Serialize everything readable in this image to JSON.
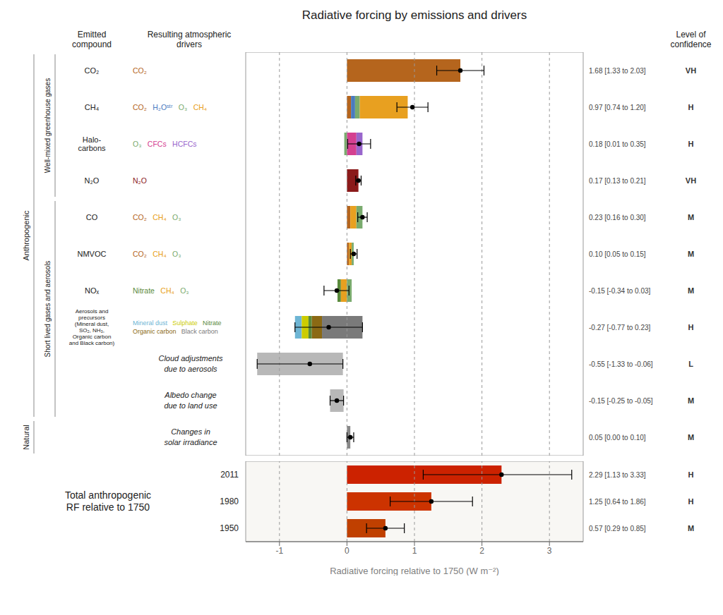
{
  "chart_data": [
    {
      "type": "bar",
      "orientation": "horizontal",
      "title": "Radiative forcing by emissions and drivers",
      "column_headers": [
        "Emitted\ncompound",
        "Resulting atmospheric\ndrivers",
        "Level of\nconfidence"
      ],
      "categories": [
        "CO₂",
        "CH₄",
        "Halo-\ncarbons",
        "N₂O",
        "CO",
        "NMVOC",
        "NOₓ",
        "Aerosols and\nprecursors\n(Mineral dust,\nSO₂, NH₃,\nOrganic carbon\nand Black carbon)",
        null,
        null,
        null
      ],
      "drivers": [
        [
          [
            {
              "text": "CO₂",
              "color": "#b5651d"
            }
          ]
        ],
        [
          [
            {
              "text": "CO₂",
              "color": "#b5651d"
            },
            {
              "text": "H₂Oˢᵗʳ",
              "color": "#4a7bbf"
            },
            {
              "text": "O₃",
              "color": "#7aab6e"
            },
            {
              "text": "CH₄",
              "color": "#e8a020"
            }
          ]
        ],
        [
          [
            {
              "text": "O₃",
              "color": "#7aab6e"
            },
            {
              "text": "CFCs",
              "color": "#d44090"
            },
            {
              "text": "HCFCs",
              "color": "#9966cc"
            }
          ]
        ],
        [
          [
            {
              "text": "N₂O",
              "color": "#8b1a1a"
            }
          ]
        ],
        [
          [
            {
              "text": "CO₂",
              "color": "#b5651d"
            },
            {
              "text": "CH₄",
              "color": "#e8a020"
            },
            {
              "text": "O₃",
              "color": "#7aab6e"
            }
          ]
        ],
        [
          [
            {
              "text": "CO₂",
              "color": "#b5651d"
            },
            {
              "text": "CH₄",
              "color": "#e8a020"
            },
            {
              "text": "O₃",
              "color": "#7aab6e"
            }
          ]
        ],
        [
          [
            {
              "text": "Nitrate",
              "color": "#5a8a3c"
            },
            {
              "text": "CH₄",
              "color": "#e8a020"
            },
            {
              "text": "O₃",
              "color": "#7aab6e"
            }
          ]
        ],
        [
          [
            {
              "text": "Mineral dust",
              "color": "#6eb5d4"
            },
            {
              "text": "Sulphate",
              "color": "#cccc00"
            },
            {
              "text": "Nitrate",
              "color": "#5a8a3c"
            }
          ],
          [
            {
              "text": "Organic carbon",
              "color": "#8b6914"
            },
            {
              "text": "Black carbon",
              "color": "#7a7a7a"
            }
          ]
        ],
        [
          [
            {
              "text": "Cloud adjustments"
            }
          ],
          [
            {
              "text": "due to aerosols"
            }
          ]
        ],
        [
          [
            {
              "text": "Albedo change"
            }
          ],
          [
            {
              "text": "due to land use"
            }
          ]
        ],
        [
          [
            {
              "text": "Changes in"
            }
          ],
          [
            {
              "text": "solar irradiance"
            }
          ]
        ]
      ],
      "segments": [
        [
          {
            "start": 0,
            "width": 1.68,
            "color": "#b5651d"
          }
        ],
        [
          {
            "start": 0.0,
            "width": 0.06,
            "color": "#b5651d"
          },
          {
            "start": 0.06,
            "width": 0.06,
            "color": "#4a7bbf"
          },
          {
            "start": 0.12,
            "width": 0.07,
            "color": "#7aab6e"
          },
          {
            "start": 0.19,
            "width": 0.71,
            "color": "#e8a020"
          }
        ],
        [
          {
            "start": -0.04,
            "width": 0.04,
            "color": "#7aab6e"
          },
          {
            "start": 0.0,
            "width": 0.14,
            "color": "#d44090"
          },
          {
            "start": 0.14,
            "width": 0.09,
            "color": "#9966cc"
          }
        ],
        [
          {
            "start": 0,
            "width": 0.17,
            "color": "#8b1a1a"
          }
        ],
        [
          {
            "start": 0.0,
            "width": 0.05,
            "color": "#b5651d"
          },
          {
            "start": 0.05,
            "width": 0.09,
            "color": "#e8a020"
          },
          {
            "start": 0.14,
            "width": 0.09,
            "color": "#7aab6e"
          }
        ],
        [
          {
            "start": 0.0,
            "width": 0.03,
            "color": "#b5651d"
          },
          {
            "start": 0.03,
            "width": 0.04,
            "color": "#e8a020"
          },
          {
            "start": 0.07,
            "width": 0.03,
            "color": "#7aab6e"
          }
        ],
        [
          {
            "start": -0.14,
            "width": 0.05,
            "color": "#5a8a3c"
          },
          {
            "start": -0.09,
            "width": 0.09,
            "color": "#e8a020"
          },
          {
            "start": 0.0,
            "width": 0.07,
            "color": "#7aab6e"
          }
        ],
        [
          {
            "start": -0.77,
            "width": 0.1,
            "color": "#6eb5d4"
          },
          {
            "start": -0.67,
            "width": 0.1,
            "color": "#cccc00"
          },
          {
            "start": -0.57,
            "width": 0.05,
            "color": "#5a8a3c"
          },
          {
            "start": -0.52,
            "width": 0.15,
            "color": "#8b6914"
          },
          {
            "start": -0.37,
            "width": 0.6,
            "color": "#7a7a7a"
          }
        ],
        [
          {
            "start": -1.33,
            "width": 1.27,
            "color": "#b8b8b8"
          }
        ],
        [
          {
            "start": -0.25,
            "width": 0.2,
            "color": "#b8b8b8"
          }
        ],
        [
          {
            "start": 0,
            "width": 0.05,
            "color": "#888888"
          }
        ]
      ],
      "values": [
        1.68,
        0.97,
        0.18,
        0.17,
        0.23,
        0.1,
        -0.15,
        -0.27,
        -0.55,
        -0.15,
        0.05
      ],
      "err_low": [
        0.35,
        0.23,
        0.17,
        0.04,
        0.07,
        0.05,
        0.19,
        0.5,
        0.78,
        0.1,
        0.05
      ],
      "err_high": [
        0.35,
        0.23,
        0.17,
        0.04,
        0.07,
        0.05,
        0.18,
        0.5,
        0.49,
        0.1,
        0.05
      ],
      "value_labels": [
        "1.68 [1.33 to 2.03]",
        "0.97 [0.74 to 1.20]",
        "0.18 [0.01 to 0.35]",
        "0.17 [0.13 to 0.21]",
        "0.23 [0.16 to 0.30]",
        "0.10 [0.05 to 0.15]",
        "-0.15 [-0.34 to 0.03]",
        "-0.27 [-0.77 to 0.23]",
        "-0.55 [-1.33 to -0.06]",
        "-0.15 [-0.25 to -0.05]",
        "0.05 [0.00 to 0.10]"
      ],
      "confidence": [
        "VH",
        "H",
        "H",
        "VH",
        "M",
        "M",
        "M",
        "H",
        "L",
        "M",
        "M"
      ],
      "sections": [
        {
          "label": "Anthropogenic",
          "first": 0,
          "last": 9
        },
        {
          "label": "Well-mixed greenhouse gases",
          "first": 0,
          "last": 3
        },
        {
          "label": "Short lived gases and aerosols",
          "first": 4,
          "last": 9
        },
        {
          "label": "Natural",
          "first": 10,
          "last": 10
        }
      ],
      "xlim": [
        -1.5,
        3.5
      ],
      "xticks": [
        -1,
        0,
        1,
        2,
        3
      ],
      "grid": true,
      "tick_labels": "y"
    },
    {
      "type": "bar",
      "orientation": "horizontal",
      "title": "Total anthropogenic\nRF relative to 1750",
      "categories": [
        "2011",
        "1980",
        "1950"
      ],
      "values": [
        2.29,
        1.25,
        0.57
      ],
      "err_low": [
        1.16,
        0.61,
        0.28
      ],
      "err_high": [
        1.04,
        0.61,
        0.28
      ],
      "value_labels": [
        "2.29 [1.13 to 3.33]",
        "1.25 [0.64 to 1.86]",
        "0.57 [0.29 to 0.85]"
      ],
      "confidence": [
        "H",
        "H",
        "M"
      ],
      "colors": [
        "#cc2200",
        "#cc3300",
        "#c04000"
      ],
      "xlabel": "Radiative forcing relative to 1750 (W m⁻²)",
      "xlim": [
        -1.5,
        3.5
      ],
      "xticks": [
        -1,
        0,
        1,
        2,
        3
      ],
      "grid": true
    }
  ]
}
